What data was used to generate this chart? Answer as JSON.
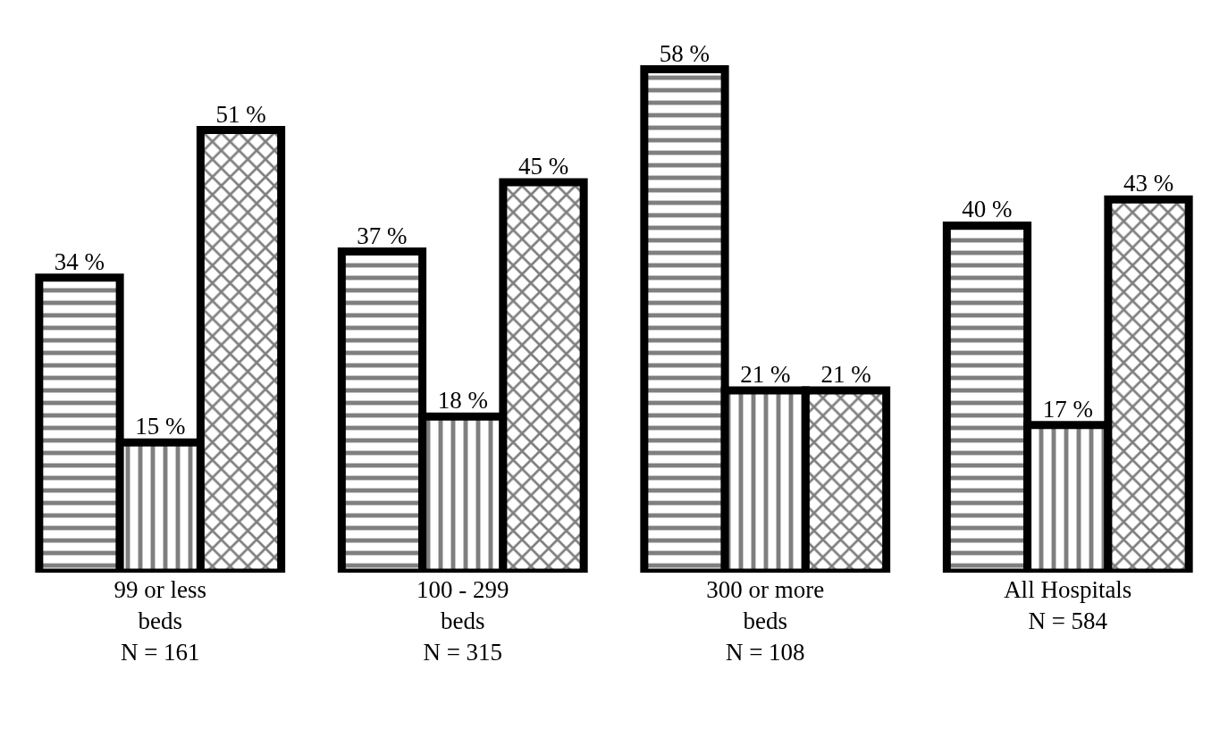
{
  "chart_data": {
    "type": "bar",
    "categories": [
      "99 or less\nbeds\nN = 161",
      "100 - 299\nbeds\nN = 315",
      "300 or more\nbeds\nN = 108",
      "All Hospitals\nN = 584"
    ],
    "series": [
      {
        "color": "#000000",
        "values": [
          34,
          37,
          58,
          40
        ],
        "value_labels": [
          "34 %",
          "37 %",
          "58 %",
          "40 %"
        ]
      },
      {
        "color": "#000000",
        "values": [
          15,
          18,
          21,
          17
        ],
        "value_labels": [
          "15 %",
          "18 %",
          "21 %",
          "17 %"
        ]
      },
      {
        "color": "#000000",
        "values": [
          51,
          45,
          21,
          43
        ],
        "value_labels": [
          "51 %",
          "45 %",
          "21 %",
          "43 %"
        ]
      }
    ],
    "tick_labels": "x"
  }
}
